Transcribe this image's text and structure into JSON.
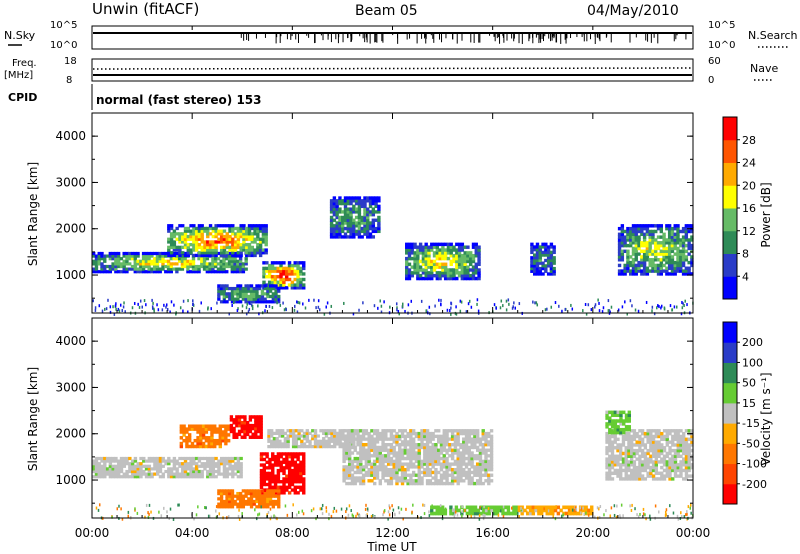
{
  "header": {
    "station": "Unwin (fitACF)",
    "beam": "Beam 05",
    "date": "04/May/2010"
  },
  "top_panels": {
    "nsky_label": "N.Sky",
    "nsky_ticks": [
      "10^5",
      "10^0"
    ],
    "nsearch_label": "N.Search",
    "nsearch_ticks": [
      "10^5",
      "10^0"
    ],
    "freq_label": "Freq.",
    "freq_unit": "[MHz]",
    "freq_ticks": [
      "18",
      "8"
    ],
    "nave_label": "Nave",
    "nave_ticks": [
      "60",
      "0"
    ],
    "cpid_label": "CPID",
    "cpid_value": "normal (fast stereo) 153"
  },
  "chart_data": [
    {
      "type": "heatmap",
      "name": "power",
      "ylabel": "Slant Range [km]",
      "yticks": [
        "1000",
        "2000",
        "3000",
        "4000"
      ],
      "ylim": [
        180,
        4500
      ],
      "colorbar_label": "Power [dB]",
      "colorbar_ticks": [
        "4",
        "8",
        "12",
        "16",
        "20",
        "24",
        "28"
      ],
      "colors": [
        "#0000ff",
        "#2a3cc8",
        "#2e8b57",
        "#66bb66",
        "#ffff00",
        "#ffaa00",
        "#ff5500",
        "#ff0000"
      ],
      "regions": [
        {
          "t0": 0.0,
          "t1": 6.2,
          "r0": 1050,
          "r1": 1500,
          "level": 0.55
        },
        {
          "t0": 3.0,
          "t1": 7.0,
          "r0": 1400,
          "r1": 2100,
          "level": 0.75
        },
        {
          "t0": 6.8,
          "t1": 8.5,
          "r0": 700,
          "r1": 1300,
          "level": 0.9
        },
        {
          "t0": 5.0,
          "t1": 7.5,
          "r0": 400,
          "r1": 800,
          "level": 0.35
        },
        {
          "t0": 9.5,
          "t1": 11.5,
          "r0": 1800,
          "r1": 2700,
          "level": 0.3
        },
        {
          "t0": 12.5,
          "t1": 15.5,
          "r0": 900,
          "r1": 1700,
          "level": 0.55
        },
        {
          "t0": 21.0,
          "t1": 24.0,
          "r0": 1000,
          "r1": 2100,
          "level": 0.45
        },
        {
          "t0": 17.5,
          "t1": 18.5,
          "r0": 1000,
          "r1": 1700,
          "level": 0.2
        }
      ]
    },
    {
      "type": "heatmap",
      "name": "velocity",
      "ylabel": "Slant Range [km]",
      "yticks": [
        "1000",
        "2000",
        "3000",
        "4000"
      ],
      "ylim": [
        180,
        4500
      ],
      "colorbar_label": "Velocity [m s⁻¹]",
      "colorbar_ticks": [
        "200",
        "100",
        "50",
        "15",
        "-15",
        "-50",
        "-100",
        "-200"
      ],
      "colors": [
        "#0000ff",
        "#2a3cc8",
        "#2e8b57",
        "#66cc33",
        "#c0c0c0",
        "#ffaa00",
        "#ff7700",
        "#ff4400",
        "#ff0000"
      ],
      "regions": [
        {
          "t0": 0.0,
          "t1": 6.0,
          "r0": 1050,
          "r1": 1500,
          "cls": 4
        },
        {
          "t0": 3.5,
          "t1": 5.5,
          "r0": 1700,
          "r1": 2200,
          "cls": 6
        },
        {
          "t0": 5.5,
          "t1": 6.8,
          "r0": 1900,
          "r1": 2400,
          "cls": 8
        },
        {
          "t0": 6.7,
          "t1": 8.5,
          "r0": 700,
          "r1": 1600,
          "cls": 8
        },
        {
          "t0": 5.0,
          "t1": 7.5,
          "r0": 400,
          "r1": 800,
          "cls": 6
        },
        {
          "t0": 7.0,
          "t1": 10.5,
          "r0": 1700,
          "r1": 2100,
          "cls": 4
        },
        {
          "t0": 10.0,
          "t1": 16.0,
          "r0": 900,
          "r1": 2100,
          "cls": 4
        },
        {
          "t0": 13.5,
          "t1": 17.0,
          "r0": 250,
          "r1": 450,
          "cls": 3
        },
        {
          "t0": 17.0,
          "t1": 20.0,
          "r0": 250,
          "r1": 450,
          "cls": 5
        },
        {
          "t0": 20.5,
          "t1": 24.0,
          "r0": 1000,
          "r1": 2100,
          "cls": 4
        },
        {
          "t0": 20.5,
          "t1": 21.5,
          "r0": 2000,
          "r1": 2500,
          "cls": 3
        }
      ]
    }
  ],
  "time_axis": {
    "label": "Time UT",
    "ticks": [
      "00:00",
      "04:00",
      "08:00",
      "12:00",
      "16:00",
      "20:00",
      "00:00"
    ]
  }
}
